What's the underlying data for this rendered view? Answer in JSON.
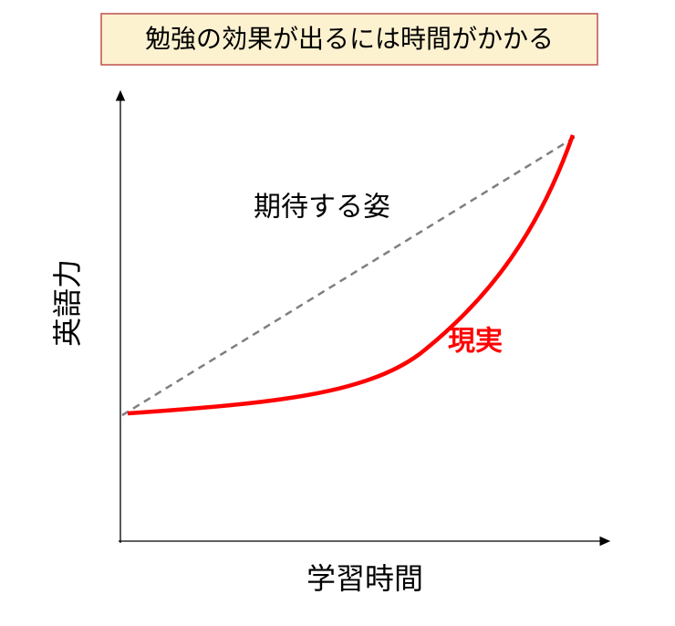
{
  "title": "勉強の効果が出るには時間がかかる",
  "y_axis_label": "英語力",
  "x_axis_label": "学習時間",
  "annotations": {
    "expected": "期待する姿",
    "reality": "現実"
  }
}
